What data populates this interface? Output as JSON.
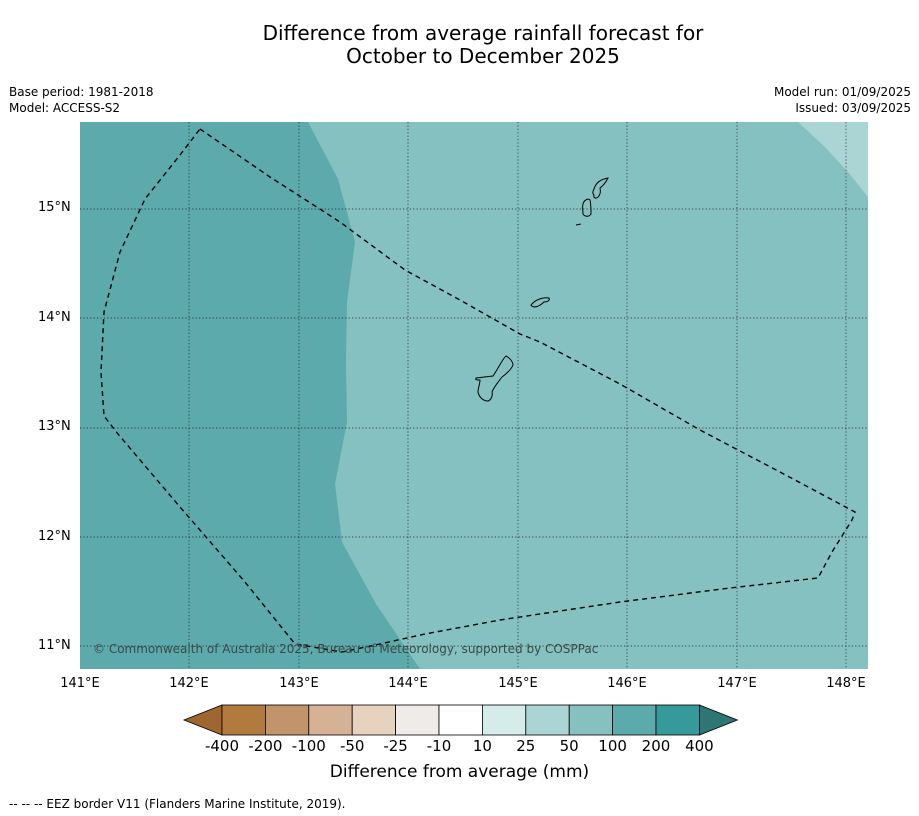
{
  "title_line1": "Difference from average rainfall forecast for",
  "title_line2": "October to December 2025",
  "meta": {
    "base_period": "Base period: 1981-2018",
    "model": "Model: ACCESS-S2",
    "model_run": "Model run: 01/09/2025",
    "issued": "Issued: 03/09/2025"
  },
  "map": {
    "latitudes": [
      "15°N",
      "14°N",
      "13°N",
      "12°N",
      "11°N"
    ],
    "longitudes": [
      "141°E",
      "142°E",
      "143°E",
      "144°E",
      "145°E",
      "146°E",
      "147°E",
      "148°E"
    ],
    "copyright": "© Commonwealth of Australia 2025, Bureau of Meteorology, supported by COSPPac",
    "zone_colors": {
      "band_200_400": "#5caaab",
      "band_100_200": "#85c1c0",
      "band_50_100": "#abd5d4"
    }
  },
  "colorbar": {
    "title": "Difference from average (mm)",
    "labels": [
      "-400",
      "-200",
      "-100",
      "-50",
      "-25",
      "-10",
      "10",
      "25",
      "50",
      "100",
      "200",
      "400"
    ],
    "colors": [
      "#a0662f",
      "#b27a3f",
      "#c29469",
      "#d5b293",
      "#e7d2c0",
      "#efebe8",
      "#ffffff",
      "#d5ecea",
      "#abd5d4",
      "#85c1c0",
      "#5caaab",
      "#369a9a",
      "#2e7675"
    ]
  },
  "footnote": "--  --  -- EEZ border V11 (Flanders Marine Institute, 2019)."
}
